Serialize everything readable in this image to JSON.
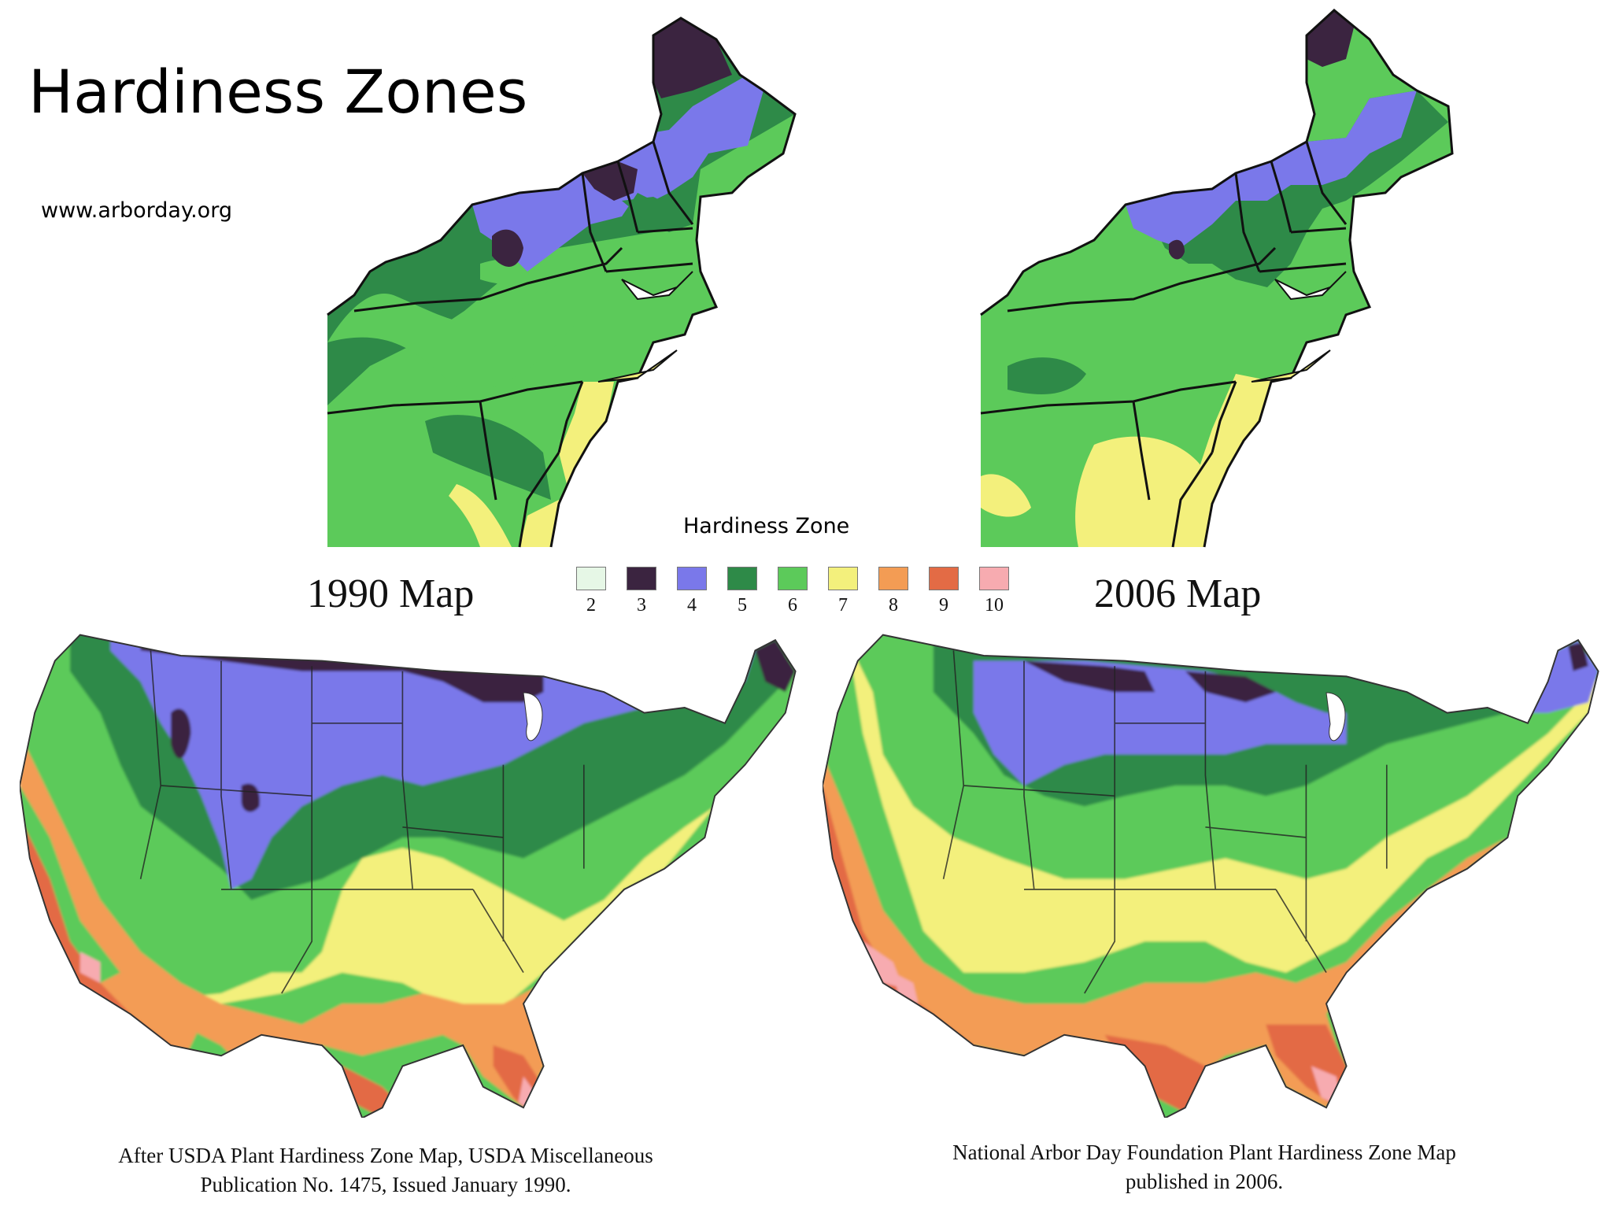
{
  "slide": {
    "title": "Hardiness Zones",
    "credit": "www.arborday.org"
  },
  "legend": {
    "title": "Hardiness Zone",
    "zones": [
      {
        "zone": "2",
        "color": "#e6f7e6"
      },
      {
        "zone": "3",
        "color": "#3b2440"
      },
      {
        "zone": "4",
        "color": "#7a78ea"
      },
      {
        "zone": "5",
        "color": "#2e8a48"
      },
      {
        "zone": "6",
        "color": "#5cca5a"
      },
      {
        "zone": "7",
        "color": "#f3f07c"
      },
      {
        "zone": "8",
        "color": "#f39c54"
      },
      {
        "zone": "9",
        "color": "#e36b45"
      },
      {
        "zone": "10",
        "color": "#f7abb0"
      }
    ]
  },
  "map_1990": {
    "title": "1990 Map",
    "caption_line1": "After USDA Plant Hardiness Zone Map, USDA Miscellaneous",
    "caption_line2": "Publication No. 1475, Issued January 1990."
  },
  "map_2006": {
    "title": "2006 Map",
    "caption_line1": "National Arbor Day Foundation Plant Hardiness Zone Map",
    "caption_line2": "published in 2006."
  }
}
